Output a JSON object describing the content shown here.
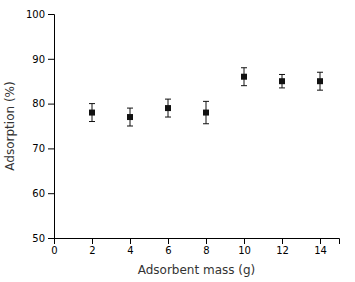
{
  "chart_data": {
    "type": "scatter",
    "x": [
      2,
      4,
      6,
      8,
      10,
      12,
      14
    ],
    "values": [
      78.0,
      77.0,
      79.0,
      78.0,
      86.0,
      85.0,
      85.0
    ],
    "yerr": [
      2.0,
      2.0,
      2.0,
      2.5,
      2.0,
      1.5,
      2.0
    ],
    "xlabel": "Adsorbent mass (g)",
    "ylabel": "Adsorption (%)",
    "xlim": [
      0,
      15
    ],
    "ylim": [
      50,
      100
    ],
    "xticks": [
      0,
      2,
      4,
      6,
      8,
      10,
      12,
      14
    ],
    "yticks": [
      50,
      60,
      70,
      80,
      90,
      100
    ],
    "marker": "square",
    "color": "#111111"
  }
}
